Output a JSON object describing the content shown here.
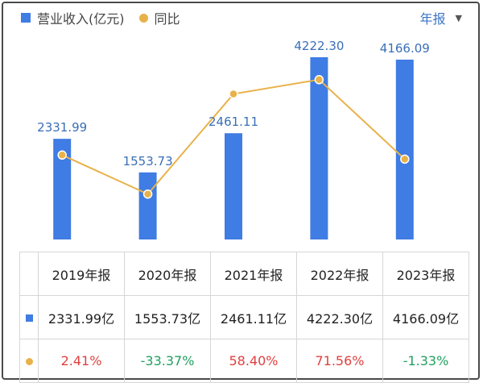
{
  "legend": {
    "revenue_label": "营业收入(亿元)",
    "yoy_label": "同比"
  },
  "period": {
    "label": "年报",
    "caret": "▼"
  },
  "colors": {
    "bar": "#3f7ce3",
    "line": "#e8b24a",
    "positive": "#e04040",
    "negative": "#20a060",
    "period_text": "#3a74c9",
    "label_text": "#3a6fb6"
  },
  "chart_data": {
    "type": "bar",
    "title": "",
    "categories": [
      "2019年报",
      "2020年报",
      "2021年报",
      "2022年报",
      "2023年报"
    ],
    "series": [
      {
        "name": "营业收入(亿元)",
        "type": "bar",
        "values": [
          2331.99,
          1553.73,
          2461.11,
          4222.3,
          4166.09
        ],
        "labels": [
          "2331.99",
          "1553.73",
          "2461.11",
          "4222.30",
          "4166.09"
        ]
      },
      {
        "name": "同比",
        "type": "line",
        "values": [
          2.41,
          -33.37,
          58.4,
          71.56,
          -1.33
        ]
      }
    ],
    "ylim": [
      0,
      4800
    ],
    "y2lim": [
      -75,
      115
    ],
    "grid": false
  },
  "table": {
    "headers": [
      "2019年报",
      "2020年报",
      "2021年报",
      "2022年报",
      "2023年报"
    ],
    "revenue_row": [
      "2331.99亿",
      "1553.73亿",
      "2461.11亿",
      "4222.30亿",
      "4166.09亿"
    ],
    "yoy_row": [
      "2.41%",
      "-33.37%",
      "58.40%",
      "71.56%",
      "-1.33%"
    ]
  }
}
